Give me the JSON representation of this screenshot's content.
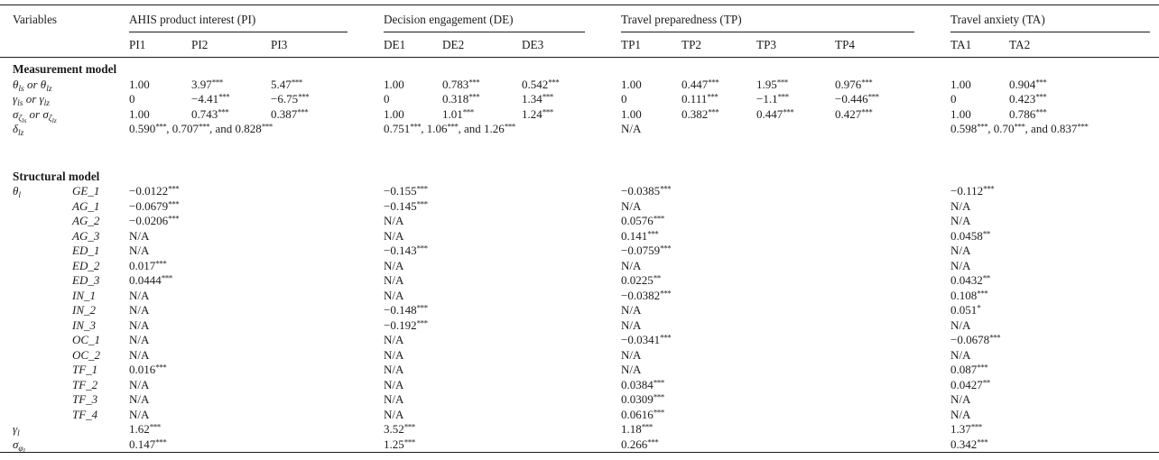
{
  "table": {
    "header": {
      "variables_label": "Variables",
      "groups": [
        {
          "label": "AHIS product interest (PI)",
          "cols": [
            "PI1",
            "PI2",
            "PI3"
          ]
        },
        {
          "label": "Decision engagement (DE)",
          "cols": [
            "DE1",
            "DE2",
            "DE3"
          ]
        },
        {
          "label": "Travel preparedness (TP)",
          "cols": [
            "TP1",
            "TP2",
            "TP3",
            "TP4"
          ]
        },
        {
          "label": "Travel anxiety (TA)",
          "cols": [
            "TA1",
            "TA2"
          ]
        }
      ]
    },
    "rows": [
      {
        "type": "section",
        "label": "Measurement model"
      },
      {
        "type": "cells",
        "label": "θ_{ls} or θ_{lz}",
        "label2": "",
        "cells": [
          "1.00",
          "3.97***",
          "5.47***",
          "1.00",
          "0.783***",
          "0.542***",
          "1.00",
          "0.447***",
          "1.95***",
          "0.976***",
          "1.00",
          "0.904***"
        ]
      },
      {
        "type": "cells",
        "label": "γ_{ls} or γ_{lz}",
        "label2": "",
        "cells": [
          "0",
          "−4.41***",
          "−6.75***",
          "0",
          "0.318***",
          "1.34***",
          "0",
          "0.111***",
          "−1.1***",
          "−0.446***",
          "0",
          "0.423***"
        ]
      },
      {
        "type": "cells",
        "label": "σ_{ζ_{ls}} or σ_{ζ_{lz}}",
        "label2": "",
        "cells": [
          "1.00",
          "0.743***",
          "0.387***",
          "1.00",
          "1.01***",
          "1.24***",
          "1.00",
          "0.382***",
          "0.447***",
          "0.427***",
          "1.00",
          "0.786***"
        ]
      },
      {
        "type": "groups",
        "label": "δ_{lz}",
        "label2": "",
        "cells": [
          "0.590***, 0.707***, and 0.828***",
          "0.751***, 1.06***, and 1.26***",
          "N/A",
          "0.598***, 0.70***, and 0.837***"
        ]
      },
      {
        "type": "spacer"
      },
      {
        "type": "section",
        "label": "Structural model"
      },
      {
        "type": "groups",
        "label": "θ_{l}",
        "label2": "GE_1",
        "cells": [
          "−0.0122***",
          "−0.155***",
          "−0.0385***",
          "−0.112***"
        ]
      },
      {
        "type": "groups",
        "label": "",
        "label2": "AG_1",
        "cells": [
          "−0.0679***",
          "−0.145***",
          "N/A",
          "N/A"
        ]
      },
      {
        "type": "groups",
        "label": "",
        "label2": "AG_2",
        "cells": [
          "−0.0206***",
          "N/A",
          "0.0576***",
          "N/A"
        ]
      },
      {
        "type": "groups",
        "label": "",
        "label2": "AG_3",
        "cells": [
          "N/A",
          "N/A",
          "0.141***",
          "0.0458**"
        ]
      },
      {
        "type": "groups",
        "label": "",
        "label2": "ED_1",
        "cells": [
          "N/A",
          "−0.143***",
          "−0.0759***",
          "N/A"
        ]
      },
      {
        "type": "groups",
        "label": "",
        "label2": "ED_2",
        "cells": [
          "0.017***",
          "N/A",
          "N/A",
          "N/A"
        ]
      },
      {
        "type": "groups",
        "label": "",
        "label2": "ED_3",
        "cells": [
          "0.0444***",
          "N/A",
          "0.0225**",
          "0.0432**"
        ]
      },
      {
        "type": "groups",
        "label": "",
        "label2": "IN_1",
        "cells": [
          "N/A",
          "N/A",
          "−0.0382***",
          "0.108***"
        ]
      },
      {
        "type": "groups",
        "label": "",
        "label2": "IN_2",
        "cells": [
          "N/A",
          "−0.148***",
          "N/A",
          "0.051*"
        ]
      },
      {
        "type": "groups",
        "label": "",
        "label2": "IN_3",
        "cells": [
          "N/A",
          "−0.192***",
          "N/A",
          "N/A"
        ]
      },
      {
        "type": "groups",
        "label": "",
        "label2": "OC_1",
        "cells": [
          "N/A",
          "N/A",
          "−0.0341***",
          "−0.0678***"
        ]
      },
      {
        "type": "groups",
        "label": "",
        "label2": "OC_2",
        "cells": [
          "N/A",
          "N/A",
          "N/A",
          "N/A"
        ]
      },
      {
        "type": "groups",
        "label": "",
        "label2": "TF_1",
        "cells": [
          "0.016***",
          "N/A",
          "N/A",
          "0.087***"
        ]
      },
      {
        "type": "groups",
        "label": "",
        "label2": "TF_2",
        "cells": [
          "N/A",
          "N/A",
          "0.0384***",
          "0.0427**"
        ]
      },
      {
        "type": "groups",
        "label": "",
        "label2": "TF_3",
        "cells": [
          "N/A",
          "N/A",
          "0.0309***",
          "N/A"
        ]
      },
      {
        "type": "groups",
        "label": "",
        "label2": "TF_4",
        "cells": [
          "N/A",
          "N/A",
          "0.0616***",
          "N/A"
        ]
      },
      {
        "type": "groups",
        "label": "γ_{l}",
        "label2": "",
        "cells": [
          "1.62***",
          "3.52***",
          "1.18***",
          "1.37***"
        ]
      },
      {
        "type": "groups",
        "label": "σ_{φ_{l}}",
        "label2": "",
        "cells": [
          "0.147***",
          "1.25***",
          "0.266***",
          "0.342***"
        ]
      }
    ]
  }
}
